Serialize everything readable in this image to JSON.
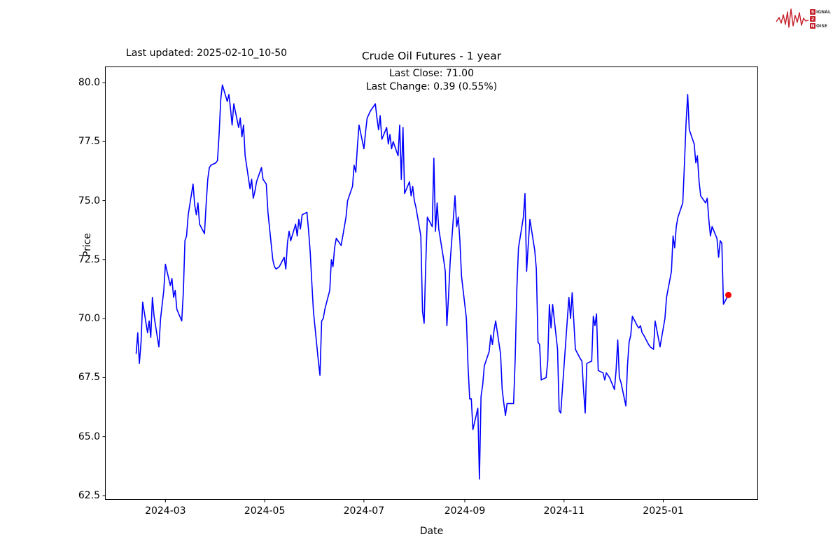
{
  "header": {
    "last_updated": "Last updated: 2025-02-10_10-50",
    "title": "Crude Oil Futures - 1 year",
    "last_close_annotation": "Last Close: 71.00",
    "last_change_annotation": "Last Change: 0.39 (0.55%)"
  },
  "logo": {
    "rows": [
      {
        "box": "S",
        "rest": "IGNAL"
      },
      {
        "box": "2",
        "rest": ""
      },
      {
        "box": "N",
        "rest": "OISE"
      }
    ],
    "color": "#c41f2a"
  },
  "chart_data": {
    "type": "line",
    "title": "Crude Oil Futures - 1 year",
    "xlabel": "Date",
    "ylabel": "Price",
    "line_color": "#0000ff",
    "marker_color": "#ff0000",
    "grid": false,
    "legend": "none",
    "ylim": [
      62.4,
      80.7
    ],
    "yticks": [
      62.5,
      65.0,
      67.5,
      70.0,
      72.5,
      75.0,
      77.5,
      80.0
    ],
    "xticks": [
      {
        "label": "2024-03",
        "date": "2024-03-01"
      },
      {
        "label": "2024-05",
        "date": "2024-05-01"
      },
      {
        "label": "2024-07",
        "date": "2024-07-01"
      },
      {
        "label": "2024-09",
        "date": "2024-09-01"
      },
      {
        "label": "2024-11",
        "date": "2024-11-01"
      },
      {
        "label": "2025-01",
        "date": "2025-01-01"
      }
    ],
    "last_close": 71.0,
    "last_change": 0.39,
    "last_change_pct": 0.55,
    "marker": {
      "date": "2025-02-10",
      "value": 71.0
    },
    "dates": [
      "2024-02-12",
      "2024-02-13",
      "2024-02-14",
      "2024-02-15",
      "2024-02-16",
      "2024-02-19",
      "2024-02-20",
      "2024-02-21",
      "2024-02-22",
      "2024-02-23",
      "2024-02-26",
      "2024-02-27",
      "2024-02-28",
      "2024-02-29",
      "2024-03-01",
      "2024-03-04",
      "2024-03-05",
      "2024-03-06",
      "2024-03-07",
      "2024-03-08",
      "2024-03-11",
      "2024-03-12",
      "2024-03-13",
      "2024-03-14",
      "2024-03-15",
      "2024-03-18",
      "2024-03-19",
      "2024-03-20",
      "2024-03-21",
      "2024-03-22",
      "2024-03-25",
      "2024-03-26",
      "2024-03-27",
      "2024-03-28",
      "2024-03-29",
      "2024-04-01",
      "2024-04-02",
      "2024-04-03",
      "2024-04-04",
      "2024-04-05",
      "2024-04-08",
      "2024-04-09",
      "2024-04-10",
      "2024-04-11",
      "2024-04-12",
      "2024-04-15",
      "2024-04-16",
      "2024-04-17",
      "2024-04-18",
      "2024-04-19",
      "2024-04-22",
      "2024-04-23",
      "2024-04-24",
      "2024-04-25",
      "2024-04-26",
      "2024-04-29",
      "2024-04-30",
      "2024-05-01",
      "2024-05-02",
      "2024-05-03",
      "2024-05-06",
      "2024-05-07",
      "2024-05-08",
      "2024-05-10",
      "2024-05-13",
      "2024-05-14",
      "2024-05-15",
      "2024-05-16",
      "2024-05-17",
      "2024-05-20",
      "2024-05-21",
      "2024-05-22",
      "2024-05-23",
      "2024-05-24",
      "2024-05-27",
      "2024-05-28",
      "2024-05-29",
      "2024-05-30",
      "2024-05-31",
      "2024-06-03",
      "2024-06-04",
      "2024-06-05",
      "2024-06-06",
      "2024-06-07",
      "2024-06-10",
      "2024-06-11",
      "2024-06-12",
      "2024-06-13",
      "2024-06-14",
      "2024-06-17",
      "2024-06-18",
      "2024-06-20",
      "2024-06-21",
      "2024-06-24",
      "2024-06-25",
      "2024-06-26",
      "2024-06-27",
      "2024-06-28",
      "2024-07-01",
      "2024-07-02",
      "2024-07-03",
      "2024-07-05",
      "2024-07-08",
      "2024-07-09",
      "2024-07-10",
      "2024-07-11",
      "2024-07-12",
      "2024-07-15",
      "2024-07-16",
      "2024-07-17",
      "2024-07-18",
      "2024-07-19",
      "2024-07-22",
      "2024-07-23",
      "2024-07-24",
      "2024-07-25",
      "2024-07-26",
      "2024-07-29",
      "2024-07-30",
      "2024-07-31",
      "2024-08-01",
      "2024-08-02",
      "2024-08-05",
      "2024-08-06",
      "2024-08-07",
      "2024-08-08",
      "2024-08-09",
      "2024-08-12",
      "2024-08-13",
      "2024-08-14",
      "2024-08-15",
      "2024-08-16",
      "2024-08-19",
      "2024-08-20",
      "2024-08-21",
      "2024-08-22",
      "2024-08-23",
      "2024-08-26",
      "2024-08-27",
      "2024-08-28",
      "2024-08-29",
      "2024-08-30",
      "2024-09-02",
      "2024-09-03",
      "2024-09-04",
      "2024-09-05",
      "2024-09-06",
      "2024-09-09",
      "2024-09-10",
      "2024-09-11",
      "2024-09-12",
      "2024-09-13",
      "2024-09-16",
      "2024-09-17",
      "2024-09-18",
      "2024-09-19",
      "2024-09-20",
      "2024-09-23",
      "2024-09-24",
      "2024-09-25",
      "2024-09-26",
      "2024-09-27",
      "2024-09-30",
      "2024-10-01",
      "2024-10-02",
      "2024-10-03",
      "2024-10-04",
      "2024-10-07",
      "2024-10-08",
      "2024-10-09",
      "2024-10-10",
      "2024-10-11",
      "2024-10-14",
      "2024-10-15",
      "2024-10-16",
      "2024-10-17",
      "2024-10-18",
      "2024-10-21",
      "2024-10-22",
      "2024-10-23",
      "2024-10-24",
      "2024-10-25",
      "2024-10-28",
      "2024-10-29",
      "2024-10-30",
      "2024-10-31",
      "2024-11-01",
      "2024-11-04",
      "2024-11-05",
      "2024-11-06",
      "2024-11-07",
      "2024-11-08",
      "2024-11-11",
      "2024-11-12",
      "2024-11-13",
      "2024-11-14",
      "2024-11-15",
      "2024-11-18",
      "2024-11-19",
      "2024-11-20",
      "2024-11-21",
      "2024-11-22",
      "2024-11-25",
      "2024-11-26",
      "2024-11-27",
      "2024-11-29",
      "2024-12-02",
      "2024-12-03",
      "2024-12-04",
      "2024-12-05",
      "2024-12-06",
      "2024-12-09",
      "2024-12-10",
      "2024-12-11",
      "2024-12-12",
      "2024-12-13",
      "2024-12-16",
      "2024-12-17",
      "2024-12-18",
      "2024-12-19",
      "2024-12-20",
      "2024-12-23",
      "2024-12-24",
      "2024-12-26",
      "2024-12-27",
      "2024-12-30",
      "2024-12-31",
      "2025-01-02",
      "2025-01-03",
      "2025-01-06",
      "2025-01-07",
      "2025-01-08",
      "2025-01-09",
      "2025-01-10",
      "2025-01-13",
      "2025-01-14",
      "2025-01-15",
      "2025-01-16",
      "2025-01-17",
      "2025-01-20",
      "2025-01-21",
      "2025-01-22",
      "2025-01-23",
      "2025-01-24",
      "2025-01-27",
      "2025-01-28",
      "2025-01-29",
      "2025-01-30",
      "2025-01-31",
      "2025-02-03",
      "2025-02-04",
      "2025-02-05",
      "2025-02-06",
      "2025-02-07",
      "2025-02-10"
    ],
    "prices": [
      68.5,
      69.4,
      68.1,
      69.0,
      70.7,
      69.4,
      69.9,
      69.2,
      70.9,
      70.1,
      68.8,
      70.0,
      70.6,
      71.2,
      72.3,
      71.4,
      71.7,
      70.9,
      71.2,
      70.4,
      69.9,
      71.1,
      73.3,
      73.5,
      74.4,
      75.7,
      74.8,
      74.4,
      74.9,
      74.0,
      73.6,
      74.8,
      75.9,
      76.4,
      76.5,
      76.6,
      76.7,
      77.8,
      79.3,
      79.9,
      79.2,
      79.5,
      78.9,
      78.2,
      79.1,
      78.1,
      78.5,
      77.7,
      78.2,
      76.9,
      75.5,
      75.9,
      75.1,
      75.4,
      75.8,
      76.4,
      75.9,
      75.8,
      75.7,
      74.5,
      72.5,
      72.2,
      72.1,
      72.2,
      72.6,
      72.1,
      73.2,
      73.7,
      73.3,
      74.0,
      73.5,
      74.2,
      73.8,
      74.4,
      74.5,
      73.7,
      72.8,
      71.5,
      70.3,
      68.2,
      67.6,
      69.9,
      70.0,
      70.4,
      71.2,
      72.5,
      72.2,
      73.0,
      73.4,
      73.1,
      73.5,
      74.3,
      75.0,
      75.6,
      76.5,
      76.2,
      77.3,
      78.2,
      77.2,
      77.9,
      78.5,
      78.8,
      79.1,
      78.5,
      78.0,
      78.6,
      77.6,
      78.1,
      77.4,
      77.8,
      77.2,
      77.5,
      76.9,
      78.2,
      75.9,
      78.1,
      75.3,
      75.8,
      75.2,
      75.6,
      75.0,
      74.7,
      73.5,
      70.3,
      69.8,
      72.3,
      74.3,
      73.9,
      76.8,
      73.7,
      74.9,
      73.8,
      72.5,
      72.0,
      69.7,
      70.9,
      72.4,
      75.2,
      73.9,
      74.3,
      73.3,
      71.8,
      70.0,
      68.0,
      66.6,
      66.6,
      65.3,
      66.2,
      63.2,
      66.7,
      67.2,
      68.0,
      68.6,
      69.3,
      68.9,
      69.5,
      69.9,
      68.5,
      67.0,
      66.4,
      65.9,
      66.4,
      66.4,
      66.4,
      68.3,
      71.3,
      73.0,
      74.3,
      75.3,
      72.0,
      73.1,
      74.2,
      72.9,
      72.1,
      69.0,
      68.9,
      67.4,
      67.5,
      68.2,
      70.6,
      69.6,
      70.6,
      68.7,
      66.1,
      66.0,
      67.0,
      68.0,
      70.9,
      70.0,
      71.1,
      69.9,
      68.7,
      68.3,
      68.2,
      67.0,
      66.0,
      68.1,
      68.2,
      70.1,
      69.7,
      70.2,
      67.8,
      67.7,
      67.4,
      67.7,
      67.5,
      67.0,
      67.8,
      69.1,
      67.5,
      67.3,
      66.3,
      68.0,
      69.0,
      69.3,
      70.1,
      69.7,
      69.6,
      69.7,
      69.4,
      69.3,
      68.9,
      68.8,
      68.7,
      69.9,
      68.8,
      69.2,
      70.0,
      70.9,
      72.0,
      73.5,
      73.0,
      73.9,
      74.3,
      74.9,
      76.5,
      78.3,
      79.5,
      78.0,
      77.4,
      76.6,
      76.9,
      75.8,
      75.2,
      74.9,
      75.1,
      74.2,
      73.5,
      73.9,
      73.4,
      72.6,
      73.3,
      73.2,
      70.61,
      71.0
    ]
  }
}
